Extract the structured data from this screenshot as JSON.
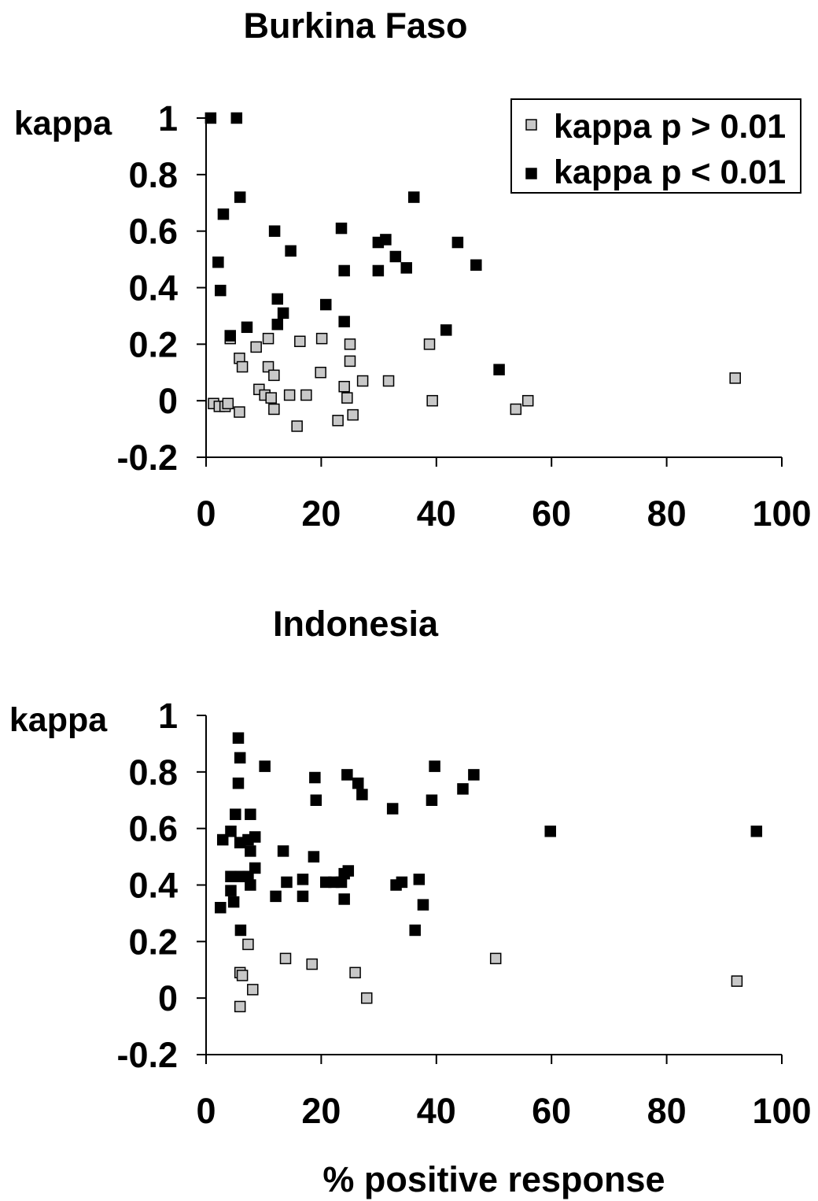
{
  "chart_data": [
    {
      "type": "scatter",
      "title": "Burkina Faso",
      "ylabel": "kappa",
      "xlabel": "",
      "xlim": [
        0,
        100
      ],
      "ylim": [
        -0.2,
        1
      ],
      "xticks": [
        "0",
        "20",
        "40",
        "60",
        "80",
        "100"
      ],
      "yticks": [
        "-0.2",
        "0",
        "0.2",
        "0.4",
        "0.6",
        "0.8",
        "1"
      ],
      "grid": false,
      "legend": {
        "position": "top-right",
        "entries": [
          {
            "label": "kappa p > 0.01",
            "color": "#c8c8c8"
          },
          {
            "label": "kappa p < 0.01",
            "color": "#000000"
          }
        ]
      },
      "series": [
        {
          "name": "kappa p > 0.01",
          "color": "#c8c8c8",
          "points": [
            [
              1.3,
              -0.01
            ],
            [
              2.3,
              -0.02
            ],
            [
              3.3,
              -0.02
            ],
            [
              3.8,
              -0.01
            ],
            [
              4.2,
              0.22
            ],
            [
              5.8,
              0.15
            ],
            [
              6.3,
              0.12
            ],
            [
              5.8,
              -0.04
            ],
            [
              8.7,
              0.19
            ],
            [
              9.2,
              0.04
            ],
            [
              10.2,
              0.02
            ],
            [
              10.8,
              0.22
            ],
            [
              10.8,
              0.12
            ],
            [
              11.3,
              0.01
            ],
            [
              11.8,
              0.09
            ],
            [
              11.8,
              -0.03
            ],
            [
              14.5,
              0.02
            ],
            [
              15.8,
              -0.09
            ],
            [
              16.3,
              0.21
            ],
            [
              17.4,
              0.02
            ],
            [
              19.9,
              0.1
            ],
            [
              20.1,
              0.22
            ],
            [
              22.9,
              -0.07
            ],
            [
              24.0,
              0.05
            ],
            [
              24.5,
              0.01
            ],
            [
              25.0,
              0.2
            ],
            [
              25.0,
              0.14
            ],
            [
              25.5,
              -0.05
            ],
            [
              27.2,
              0.07
            ],
            [
              31.7,
              0.07
            ],
            [
              38.8,
              0.2
            ],
            [
              39.3,
              0.0
            ],
            [
              53.8,
              -0.03
            ],
            [
              55.9,
              0.0
            ],
            [
              91.9,
              0.08
            ]
          ]
        },
        {
          "name": "kappa p < 0.01",
          "color": "#000000",
          "points": [
            [
              0.8,
              1.0
            ],
            [
              5.3,
              1.0
            ],
            [
              5.9,
              0.72
            ],
            [
              3.0,
              0.66
            ],
            [
              2.1,
              0.49
            ],
            [
              2.5,
              0.39
            ],
            [
              4.2,
              0.23
            ],
            [
              7.1,
              0.26
            ],
            [
              11.9,
              0.6
            ],
            [
              12.4,
              0.36
            ],
            [
              12.4,
              0.27
            ],
            [
              13.4,
              0.31
            ],
            [
              14.7,
              0.53
            ],
            [
              20.8,
              0.34
            ],
            [
              23.5,
              0.61
            ],
            [
              24.0,
              0.46
            ],
            [
              24.0,
              0.28
            ],
            [
              29.9,
              0.56
            ],
            [
              29.9,
              0.46
            ],
            [
              31.2,
              0.57
            ],
            [
              32.9,
              0.51
            ],
            [
              34.8,
              0.47
            ],
            [
              36.1,
              0.72
            ],
            [
              41.7,
              0.25
            ],
            [
              43.7,
              0.56
            ],
            [
              46.9,
              0.48
            ],
            [
              50.9,
              0.11
            ]
          ]
        }
      ]
    },
    {
      "type": "scatter",
      "title": "Indonesia",
      "ylabel": "kappa",
      "xlabel": "% positive response",
      "xlim": [
        0,
        100
      ],
      "ylim": [
        -0.2,
        1
      ],
      "xticks": [
        "0",
        "20",
        "40",
        "60",
        "80",
        "100"
      ],
      "yticks": [
        "-0.2",
        "0",
        "0.2",
        "0.4",
        "0.6",
        "0.8",
        "1"
      ],
      "grid": false,
      "series": [
        {
          "name": "kappa p > 0.01",
          "color": "#c8c8c8",
          "points": [
            [
              5.9,
              0.09
            ],
            [
              6.3,
              0.08
            ],
            [
              5.9,
              -0.03
            ],
            [
              7.3,
              0.19
            ],
            [
              8.1,
              0.03
            ],
            [
              13.8,
              0.14
            ],
            [
              18.4,
              0.12
            ],
            [
              25.9,
              0.09
            ],
            [
              27.9,
              0.0
            ],
            [
              50.3,
              0.14
            ],
            [
              92.2,
              0.06
            ]
          ]
        },
        {
          "name": "kappa p < 0.01",
          "color": "#000000",
          "points": [
            [
              5.6,
              0.92
            ],
            [
              5.9,
              0.85
            ],
            [
              5.6,
              0.76
            ],
            [
              10.2,
              0.82
            ],
            [
              5.1,
              0.65
            ],
            [
              7.7,
              0.65
            ],
            [
              4.3,
              0.59
            ],
            [
              2.9,
              0.56
            ],
            [
              5.9,
              0.55
            ],
            [
              7.3,
              0.56
            ],
            [
              8.5,
              0.57
            ],
            [
              7.7,
              0.52
            ],
            [
              8.5,
              0.46
            ],
            [
              4.3,
              0.43
            ],
            [
              5.9,
              0.43
            ],
            [
              7.3,
              0.43
            ],
            [
              7.7,
              0.4
            ],
            [
              4.3,
              0.38
            ],
            [
              4.8,
              0.34
            ],
            [
              2.5,
              0.32
            ],
            [
              6.0,
              0.24
            ],
            [
              13.4,
              0.52
            ],
            [
              14.0,
              0.41
            ],
            [
              12.1,
              0.36
            ],
            [
              16.8,
              0.42
            ],
            [
              16.8,
              0.36
            ],
            [
              18.7,
              0.5
            ],
            [
              18.9,
              0.78
            ],
            [
              19.1,
              0.7
            ],
            [
              20.8,
              0.41
            ],
            [
              22.2,
              0.41
            ],
            [
              23.5,
              0.41
            ],
            [
              24.0,
              0.44
            ],
            [
              24.0,
              0.35
            ],
            [
              24.7,
              0.45
            ],
            [
              24.5,
              0.79
            ],
            [
              26.4,
              0.76
            ],
            [
              27.1,
              0.72
            ],
            [
              32.4,
              0.67
            ],
            [
              33.0,
              0.4
            ],
            [
              34.0,
              0.41
            ],
            [
              36.3,
              0.24
            ],
            [
              37.0,
              0.42
            ],
            [
              37.7,
              0.33
            ],
            [
              39.2,
              0.7
            ],
            [
              39.7,
              0.82
            ],
            [
              44.6,
              0.74
            ],
            [
              46.5,
              0.79
            ],
            [
              59.8,
              0.59
            ],
            [
              95.6,
              0.59
            ]
          ]
        }
      ]
    }
  ]
}
